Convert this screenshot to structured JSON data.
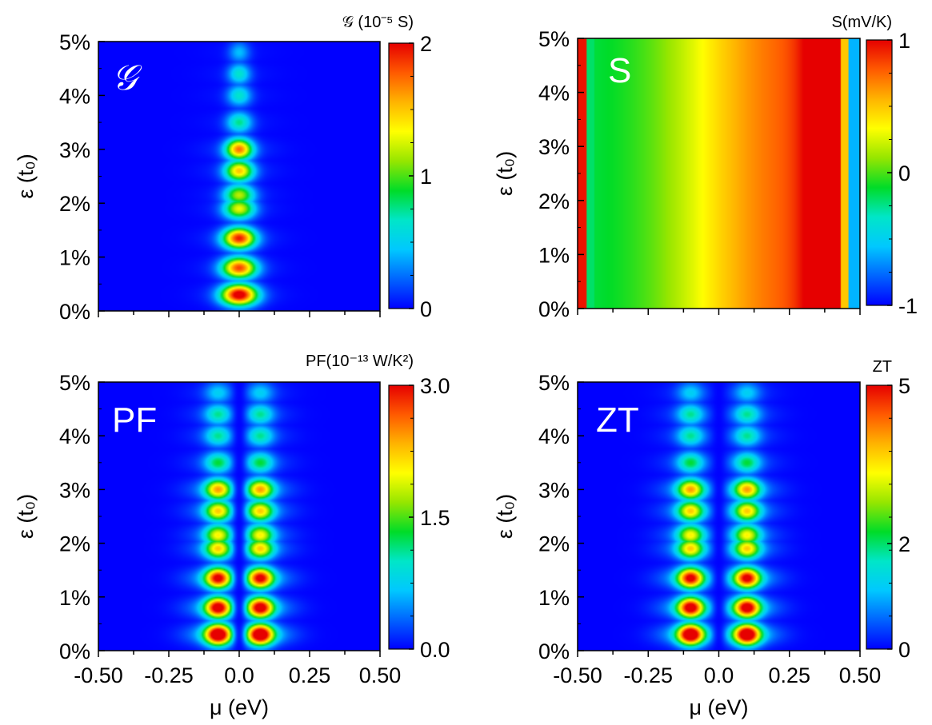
{
  "colors": {
    "colormap": [
      "#0000ff",
      "#0064ff",
      "#00c8ff",
      "#00e6c8",
      "#00dc28",
      "#96e600",
      "#ffff00",
      "#ffb400",
      "#ff5a00",
      "#e60000"
    ],
    "background": "#0000ff"
  },
  "chart_data": [
    {
      "type": "heatmap",
      "title": "𝒢",
      "colorbar_label": "𝒢 (10⁻⁵ S)",
      "colorbar_ticks": [
        "0",
        "1",
        "2"
      ],
      "colorbar_range": [
        0,
        2
      ],
      "ylabel": "ε (t₀)",
      "y_ticks": [
        "0%",
        "1%",
        "2%",
        "3%",
        "4%",
        "5%"
      ],
      "ylim": [
        0,
        5
      ],
      "xlim": [
        -0.5,
        0.5
      ],
      "x_ticks": [],
      "xlabel": "",
      "model": "G",
      "rows": [
        {
          "eps": 0.3,
          "a": 1.0
        },
        {
          "eps": 0.8,
          "a": 0.85
        },
        {
          "eps": 1.35,
          "a": 0.9
        },
        {
          "eps": 1.9,
          "a": 0.6
        },
        {
          "eps": 2.15,
          "a": 0.55
        },
        {
          "eps": 2.6,
          "a": 0.7
        },
        {
          "eps": 3.0,
          "a": 0.8
        },
        {
          "eps": 3.5,
          "a": 0.35
        },
        {
          "eps": 4.0,
          "a": 0.3
        },
        {
          "eps": 4.4,
          "a": 0.3
        },
        {
          "eps": 4.8,
          "a": 0.2
        }
      ]
    },
    {
      "type": "heatmap",
      "title": "S",
      "colorbar_label": "S(mV/K)",
      "colorbar_ticks": [
        "-1",
        "0",
        "1"
      ],
      "colorbar_range": [
        -1,
        1
      ],
      "ylabel": "ε (t₀)",
      "y_ticks": [
        "0%",
        "1%",
        "2%",
        "3%",
        "4%",
        "5%"
      ],
      "ylim": [
        0,
        5
      ],
      "xlim": [
        -0.5,
        0.5
      ],
      "x_ticks": [],
      "xlabel": "",
      "model": "S"
    },
    {
      "type": "heatmap",
      "title": "PF",
      "colorbar_label": "PF(10⁻¹³ W/K²)",
      "colorbar_ticks": [
        "0.0",
        "1.5",
        "3.0"
      ],
      "colorbar_range": [
        0,
        3
      ],
      "ylabel": "ε (t₀)",
      "y_ticks": [
        "0%",
        "1%",
        "2%",
        "3%",
        "4%",
        "5%"
      ],
      "ylim": [
        0,
        5
      ],
      "xlim": [
        -0.5,
        0.5
      ],
      "x_ticks": [
        "-0.50",
        "-0.25",
        "0.0",
        "0.25",
        "0.50"
      ],
      "xlabel": "μ (eV)",
      "model": "PF",
      "peak_mu": 0.075,
      "rows": [
        {
          "eps": 0.3,
          "a": 1.0
        },
        {
          "eps": 0.8,
          "a": 0.9
        },
        {
          "eps": 1.35,
          "a": 0.85
        },
        {
          "eps": 1.9,
          "a": 0.6
        },
        {
          "eps": 2.15,
          "a": 0.55
        },
        {
          "eps": 2.6,
          "a": 0.6
        },
        {
          "eps": 3.0,
          "a": 0.65
        },
        {
          "eps": 3.5,
          "a": 0.35
        },
        {
          "eps": 4.0,
          "a": 0.3
        },
        {
          "eps": 4.4,
          "a": 0.3
        },
        {
          "eps": 4.8,
          "a": 0.2
        }
      ]
    },
    {
      "type": "heatmap",
      "title": "ZT",
      "colorbar_label": "ZT",
      "colorbar_ticks": [
        "0",
        "2",
        "5"
      ],
      "colorbar_range": [
        0,
        5
      ],
      "ylabel": "ε (t₀)",
      "y_ticks": [
        "0%",
        "1%",
        "2%",
        "3%",
        "4%",
        "5%"
      ],
      "ylim": [
        0,
        5
      ],
      "xlim": [
        -0.5,
        0.5
      ],
      "x_ticks": [
        "-0.50",
        "-0.25",
        "0.0",
        "0.25",
        "0.50"
      ],
      "xlabel": "μ (eV)",
      "model": "PF",
      "peak_mu": 0.1,
      "rows": [
        {
          "eps": 0.3,
          "a": 1.0
        },
        {
          "eps": 0.8,
          "a": 0.9
        },
        {
          "eps": 1.35,
          "a": 0.85
        },
        {
          "eps": 1.9,
          "a": 0.6
        },
        {
          "eps": 2.15,
          "a": 0.55
        },
        {
          "eps": 2.6,
          "a": 0.6
        },
        {
          "eps": 3.0,
          "a": 0.65
        },
        {
          "eps": 3.5,
          "a": 0.35
        },
        {
          "eps": 4.0,
          "a": 0.3
        },
        {
          "eps": 4.4,
          "a": 0.3
        },
        {
          "eps": 4.8,
          "a": 0.2
        }
      ]
    }
  ]
}
